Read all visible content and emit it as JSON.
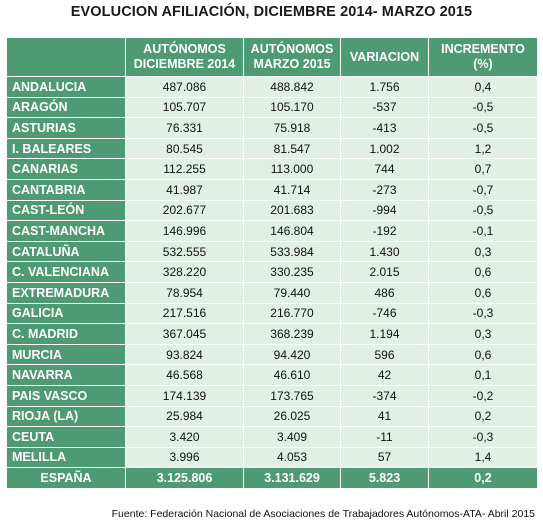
{
  "title": "EVOLUCION AFILIACIÓN, DICIEMBRE 2014- MARZO 2015",
  "columns": {
    "c1_line1": "AUTÓNOMOS",
    "c1_line2": "DICIEMBRE 2014",
    "c2_line1": "AUTÓNOMOS",
    "c2_line2": "MARZO 2015",
    "c3": "VARIACION",
    "c4_line1": "INCREMENTO",
    "c4_line2": "(%)"
  },
  "rows": [
    {
      "region": "ANDALUCIA",
      "dic2014": "487.086",
      "mar2015": "488.842",
      "variacion": "1.756",
      "incremento": "0,4"
    },
    {
      "region": "ARAGÓN",
      "dic2014": "105.707",
      "mar2015": "105.170",
      "variacion": "-537",
      "incremento": "-0,5"
    },
    {
      "region": "ASTURIAS",
      "dic2014": "76.331",
      "mar2015": "75.918",
      "variacion": "-413",
      "incremento": "-0,5"
    },
    {
      "region": "I. BALEARES",
      "dic2014": "80.545",
      "mar2015": "81.547",
      "variacion": "1.002",
      "incremento": "1,2"
    },
    {
      "region": "CANARIAS",
      "dic2014": "112.255",
      "mar2015": "113.000",
      "variacion": "744",
      "incremento": "0,7"
    },
    {
      "region": "CANTABRIA",
      "dic2014": "41.987",
      "mar2015": "41.714",
      "variacion": "-273",
      "incremento": "-0,7"
    },
    {
      "region": "CAST-LEÓN",
      "dic2014": "202.677",
      "mar2015": "201.683",
      "variacion": "-994",
      "incremento": "-0,5"
    },
    {
      "region": "CAST-MANCHA",
      "dic2014": "146.996",
      "mar2015": "146.804",
      "variacion": "-192",
      "incremento": "-0,1"
    },
    {
      "region": "CATALUÑA",
      "dic2014": "532.555",
      "mar2015": "533.984",
      "variacion": "1.430",
      "incremento": "0,3"
    },
    {
      "region": "C. VALENCIANA",
      "dic2014": "328.220",
      "mar2015": "330.235",
      "variacion": "2.015",
      "incremento": "0,6"
    },
    {
      "region": "EXTREMADURA",
      "dic2014": "78.954",
      "mar2015": "79.440",
      "variacion": "486",
      "incremento": "0,6"
    },
    {
      "region": "GALICIA",
      "dic2014": "217.516",
      "mar2015": "216.770",
      "variacion": "-746",
      "incremento": "-0,3"
    },
    {
      "region": "C. MADRID",
      "dic2014": "367.045",
      "mar2015": "368.239",
      "variacion": "1.194",
      "incremento": "0,3"
    },
    {
      "region": "MURCIA",
      "dic2014": "93.824",
      "mar2015": "94.420",
      "variacion": "596",
      "incremento": "0,6"
    },
    {
      "region": "NAVARRA",
      "dic2014": "46.568",
      "mar2015": "46.610",
      "variacion": "42",
      "incremento": "0,1"
    },
    {
      "region": "PAIS VASCO",
      "dic2014": "174.139",
      "mar2015": "173.765",
      "variacion": "-374",
      "incremento": "-0,2"
    },
    {
      "region": "RIOJA (LA)",
      "dic2014": "25.984",
      "mar2015": "26.025",
      "variacion": "41",
      "incremento": "0,2"
    },
    {
      "region": "CEUTA",
      "dic2014": "3.420",
      "mar2015": "3.409",
      "variacion": "-11",
      "incremento": "-0,3"
    },
    {
      "region": "MELILLA",
      "dic2014": "3.996",
      "mar2015": "4.053",
      "variacion": "57",
      "incremento": "1,4"
    }
  ],
  "total": {
    "region": "ESPAÑA",
    "dic2014": "3.125.806",
    "mar2015": "3.131.629",
    "variacion": "5.823",
    "incremento": "0,2"
  },
  "source": "Fuente: Federación Nacional de Asociaciones de Trabajadores Autónomos-ATA- Abril 2015",
  "colors": {
    "header_green": "#4e9a73",
    "cell_light": "#e2efe4"
  }
}
